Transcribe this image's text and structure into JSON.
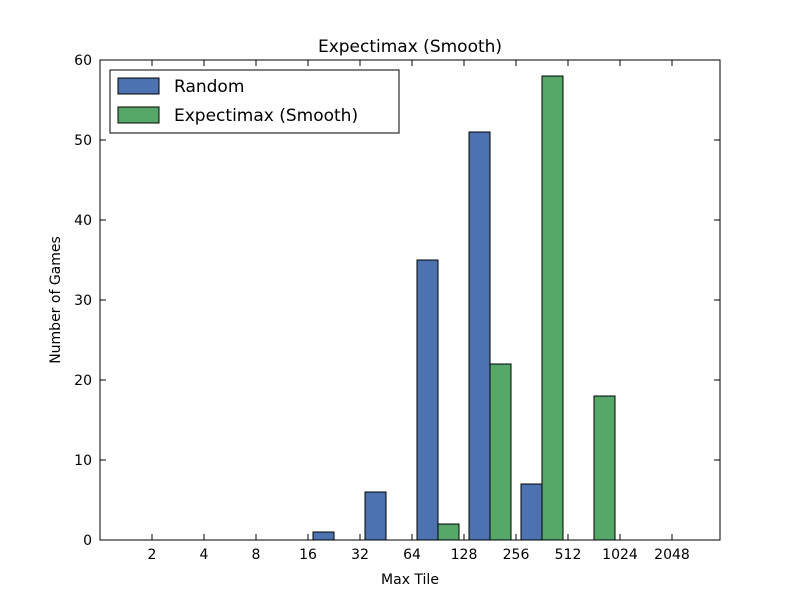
{
  "chart_data": {
    "type": "bar",
    "title": "Expectimax (Smooth)",
    "xlabel": "Max Tile",
    "ylabel": "Number of Games",
    "categories": [
      "2",
      "4",
      "8",
      "16",
      "32",
      "64",
      "128",
      "256",
      "512",
      "1024",
      "2048"
    ],
    "series": [
      {
        "name": "Random",
        "color": "#4c72b0",
        "values": [
          0,
          0,
          0,
          1,
          6,
          35,
          51,
          7,
          0,
          0,
          0
        ]
      },
      {
        "name": "Expectimax (Smooth)",
        "color": "#55a868",
        "values": [
          0,
          0,
          0,
          0,
          0,
          2,
          22,
          58,
          18,
          0,
          0
        ]
      }
    ],
    "ylim": [
      0,
      60
    ],
    "yticks": [
      0,
      10,
      20,
      30,
      40,
      50,
      60
    ],
    "grid": false,
    "legend_position": "top-left"
  }
}
